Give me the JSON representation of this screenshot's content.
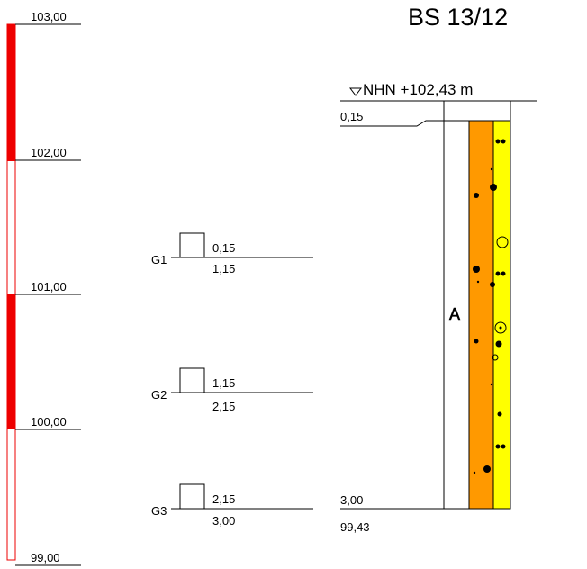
{
  "title": "BS 13/12",
  "ground_level": "NHN +102,43 m",
  "top_layer_depth": "0,15",
  "bottom_depth": "3,00",
  "bottom_elevation": "99,43",
  "stratum_label": "A",
  "elevation_scale": {
    "labels": [
      "103,00",
      "102,00",
      "101,00",
      "100,00",
      "99,00"
    ]
  },
  "samples": [
    {
      "name": "G1",
      "top": "0,15",
      "bottom": "1,15"
    },
    {
      "name": "G2",
      "top": "1,15",
      "bottom": "2,15"
    },
    {
      "name": "G3",
      "top": "2,15",
      "bottom": "3,00"
    }
  ],
  "colors": {
    "scale_red": "#ee0000",
    "orange": "#ff9900",
    "yellow": "#ffff00"
  }
}
